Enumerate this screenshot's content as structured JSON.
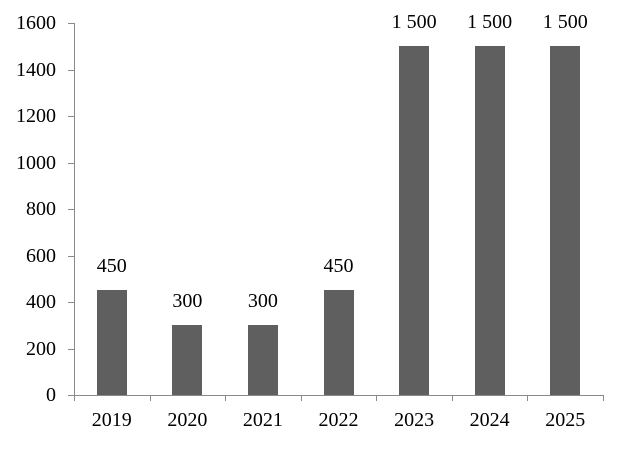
{
  "chart_data": {
    "type": "bar",
    "title": "",
    "xlabel": "",
    "ylabel": "",
    "categories": [
      "2019",
      "2020",
      "2021",
      "2022",
      "2023",
      "2024",
      "2025"
    ],
    "values": [
      450,
      300,
      300,
      450,
      1500,
      1500,
      1500
    ],
    "bar_labels": [
      "450",
      "300",
      "300",
      "450",
      "1 500",
      "1 500",
      "1 500"
    ],
    "y_tick_values": [
      0,
      200,
      400,
      600,
      800,
      1000,
      1200,
      1400,
      1600
    ],
    "y_tick_labels": [
      "0",
      "200",
      "400",
      "600",
      "800",
      "1000",
      "1200",
      "1400",
      "1600"
    ],
    "ylim": [
      0,
      1600
    ],
    "grid": false,
    "legend_position": "none",
    "colors": {
      "bar": "#5f5f5f",
      "axis": "#8a8a8a",
      "text": "#000000",
      "background": "#ffffff"
    }
  }
}
